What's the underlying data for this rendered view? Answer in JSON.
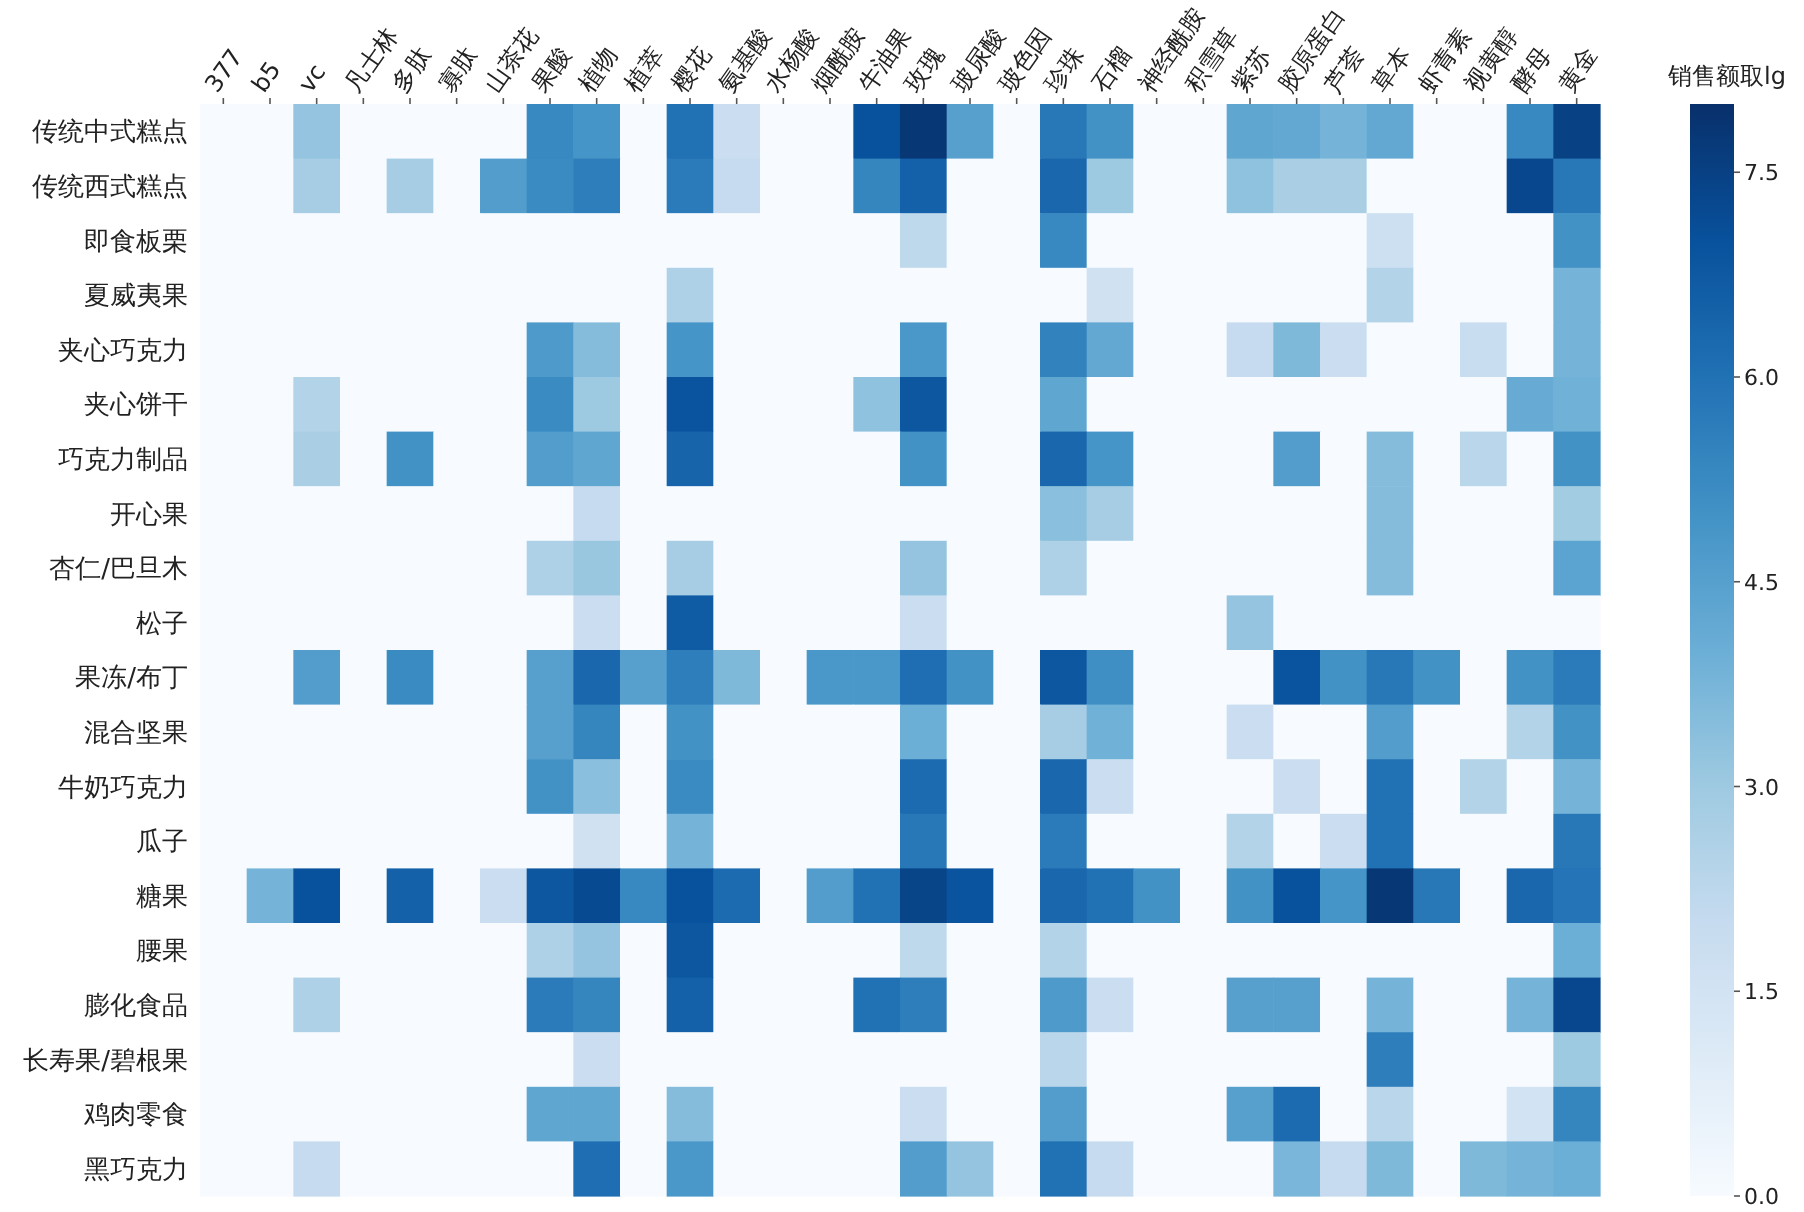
{
  "chart_data": {
    "type": "heatmap",
    "clabel": "销售额取lg",
    "categories": [
      "377",
      "b5",
      "vc",
      "凡士林",
      "多肽",
      "寡肽",
      "山茶花",
      "果酸",
      "植物",
      "植萃",
      "樱花",
      "氨基酸",
      "水杨酸",
      "烟酰胺",
      "牛油果",
      "玫瑰",
      "玻尿酸",
      "玻色因",
      "珍珠",
      "石榴",
      "神经酰胺",
      "积雪草",
      "紫苏",
      "胶原蛋白",
      "芦荟",
      "草本",
      "虾青素",
      "视黄醇",
      "酵母",
      "黄金"
    ],
    "y_categories": [
      "传统中式糕点",
      "传统西式糕点",
      "即食板栗",
      "夏威夷果",
      "夹心巧克力",
      "夹心饼干",
      "巧克力制品",
      "开心果",
      "杏仁/巴旦木",
      "松子",
      "果冻/布丁",
      "混合坚果",
      "牛奶巧克力",
      "瓜子",
      "糖果",
      "腰果",
      "膨化食品",
      "长寿果/碧根果",
      "鸡肉零食",
      "黑巧克力"
    ],
    "cells": [
      [
        0,
        0,
        3.2,
        0,
        0,
        0,
        0,
        5.3,
        4.9,
        0,
        6.0,
        1.8,
        0,
        0,
        7.0,
        7.8,
        4.5,
        0,
        5.8,
        5.0,
        0,
        0,
        4.3,
        4.2,
        3.8,
        4.2,
        0,
        0,
        5.3,
        7.5
      ],
      [
        0,
        0,
        2.8,
        0,
        2.8,
        0,
        4.6,
        5.2,
        5.6,
        0,
        5.7,
        2.0,
        0,
        0,
        5.4,
        6.5,
        0,
        0,
        6.3,
        3.0,
        0,
        0,
        3.3,
        2.7,
        2.7,
        0,
        0,
        0,
        7.3,
        5.8
      ],
      [
        0,
        0,
        0,
        0,
        0,
        0,
        0,
        0,
        0,
        0,
        0,
        0,
        0,
        0,
        0,
        2.2,
        0,
        0,
        5.3,
        0,
        0,
        0,
        0,
        0,
        0,
        1.7,
        0,
        0,
        0,
        5.0
      ],
      [
        0,
        0,
        0,
        0,
        0,
        0,
        0,
        0,
        0,
        0,
        2.6,
        0,
        0,
        0,
        0,
        0,
        0,
        0,
        0,
        1.6,
        0,
        0,
        0,
        0,
        0,
        2.5,
        0,
        0,
        0,
        3.8
      ],
      [
        0,
        0,
        0,
        0,
        0,
        0,
        0,
        4.7,
        3.5,
        0,
        4.9,
        0,
        0,
        0,
        0,
        4.8,
        0,
        0,
        5.5,
        4.2,
        0,
        0,
        2.0,
        3.6,
        1.8,
        0,
        0,
        1.9,
        0,
        3.8
      ],
      [
        0,
        0,
        2.5,
        0,
        0,
        0,
        0,
        5.2,
        3.0,
        0,
        6.9,
        0,
        0,
        0,
        3.3,
        6.8,
        0,
        0,
        4.3,
        0,
        0,
        0,
        0,
        0,
        0,
        0,
        0,
        0,
        4.1,
        3.9
      ],
      [
        0,
        0,
        2.7,
        0,
        5.0,
        0,
        0,
        4.6,
        4.3,
        0,
        6.4,
        0,
        0,
        0,
        0,
        5.0,
        0,
        0,
        6.3,
        4.9,
        0,
        0,
        0,
        4.6,
        0,
        3.5,
        0,
        2.3,
        0,
        5.0
      ],
      [
        0,
        0,
        0,
        0,
        0,
        0,
        0,
        0,
        2.0,
        0,
        0,
        0,
        0,
        0,
        0,
        0,
        0,
        0,
        3.4,
        2.8,
        0,
        0,
        0,
        0,
        0,
        3.5,
        0,
        0,
        0,
        2.9
      ],
      [
        0,
        0,
        0,
        0,
        0,
        0,
        0,
        2.6,
        3.1,
        0,
        2.8,
        0,
        0,
        0,
        0,
        3.2,
        0,
        0,
        2.6,
        0,
        0,
        0,
        0,
        0,
        0,
        3.5,
        0,
        0,
        0,
        4.4
      ],
      [
        0,
        0,
        0,
        0,
        0,
        0,
        0,
        0,
        1.8,
        0,
        6.7,
        0,
        0,
        0,
        0,
        1.8,
        0,
        0,
        0,
        0,
        0,
        0,
        3.2,
        0,
        0,
        0,
        0,
        0,
        0,
        0
      ],
      [
        0,
        0,
        4.6,
        0,
        5.2,
        0,
        0,
        4.5,
        6.3,
        4.5,
        5.6,
        3.6,
        0,
        4.8,
        4.8,
        6.1,
        5.0,
        0,
        6.8,
        5.1,
        0,
        0,
        0,
        6.9,
        5.0,
        5.8,
        5.0,
        0,
        5.0,
        5.7
      ],
      [
        0,
        0,
        0,
        0,
        0,
        0,
        0,
        4.5,
        5.4,
        0,
        5.0,
        0,
        0,
        0,
        0,
        4.0,
        0,
        0,
        2.8,
        3.9,
        0,
        0,
        1.8,
        0,
        0,
        4.6,
        0,
        0,
        2.5,
        5.0
      ],
      [
        0,
        0,
        0,
        0,
        0,
        0,
        0,
        5.0,
        3.4,
        0,
        5.2,
        0,
        0,
        0,
        0,
        6.2,
        0,
        0,
        6.3,
        1.8,
        0,
        0,
        0,
        1.8,
        0,
        6.0,
        0,
        2.5,
        0,
        3.8
      ],
      [
        0,
        0,
        0,
        0,
        0,
        0,
        0,
        0,
        1.6,
        0,
        3.8,
        0,
        0,
        0,
        0,
        5.8,
        0,
        0,
        5.7,
        0,
        0,
        0,
        2.5,
        0,
        1.8,
        6.0,
        0,
        0,
        0,
        5.8
      ],
      [
        0,
        3.8,
        7.0,
        0,
        6.5,
        0,
        1.8,
        6.8,
        7.2,
        5.3,
        7.0,
        6.2,
        0,
        4.6,
        6.0,
        7.4,
        6.9,
        0,
        6.3,
        6.0,
        5.0,
        0,
        5.0,
        7.0,
        4.9,
        7.8,
        5.8,
        0,
        6.3,
        5.9
      ],
      [
        0,
        0,
        0,
        0,
        0,
        0,
        0,
        2.6,
        3.2,
        0,
        6.8,
        0,
        0,
        0,
        0,
        2.2,
        0,
        0,
        2.5,
        0,
        0,
        0,
        0,
        0,
        0,
        0,
        0,
        0,
        0,
        4.0
      ],
      [
        0,
        0,
        2.6,
        0,
        0,
        0,
        0,
        5.7,
        5.4,
        0,
        6.5,
        0,
        0,
        0,
        6.0,
        5.6,
        0,
        0,
        4.7,
        1.8,
        0,
        0,
        4.5,
        4.5,
        0,
        3.8,
        0,
        0,
        3.8,
        7.3
      ],
      [
        0,
        0,
        0,
        0,
        0,
        0,
        0,
        0,
        1.8,
        0,
        0,
        0,
        0,
        0,
        0,
        0,
        0,
        0,
        2.3,
        0,
        0,
        0,
        0,
        0,
        0,
        5.6,
        0,
        0,
        0,
        3.0
      ],
      [
        0,
        0,
        0,
        0,
        0,
        0,
        0,
        4.3,
        4.3,
        0,
        3.5,
        0,
        0,
        0,
        0,
        1.8,
        0,
        0,
        4.6,
        0,
        0,
        0,
        4.5,
        6.2,
        0,
        2.3,
        0,
        0,
        1.5,
        5.4
      ],
      [
        0,
        0,
        2.0,
        0,
        0,
        0,
        0,
        0,
        6.1,
        0,
        4.8,
        0,
        0,
        0,
        0,
        4.6,
        3.2,
        0,
        6.0,
        2.0,
        0,
        0,
        0,
        3.7,
        2.0,
        3.6,
        0,
        3.6,
        3.8,
        4.0
      ]
    ],
    "clim": [
      0,
      8
    ],
    "cticks": [
      {
        "value": 0,
        "label": "0.0"
      },
      {
        "value": 1.5,
        "label": "1.5"
      },
      {
        "value": 3,
        "label": "3.0"
      },
      {
        "value": 4.5,
        "label": "4.5"
      },
      {
        "value": 6,
        "label": "6.0"
      },
      {
        "value": 7.5,
        "label": "7.5"
      }
    ]
  }
}
